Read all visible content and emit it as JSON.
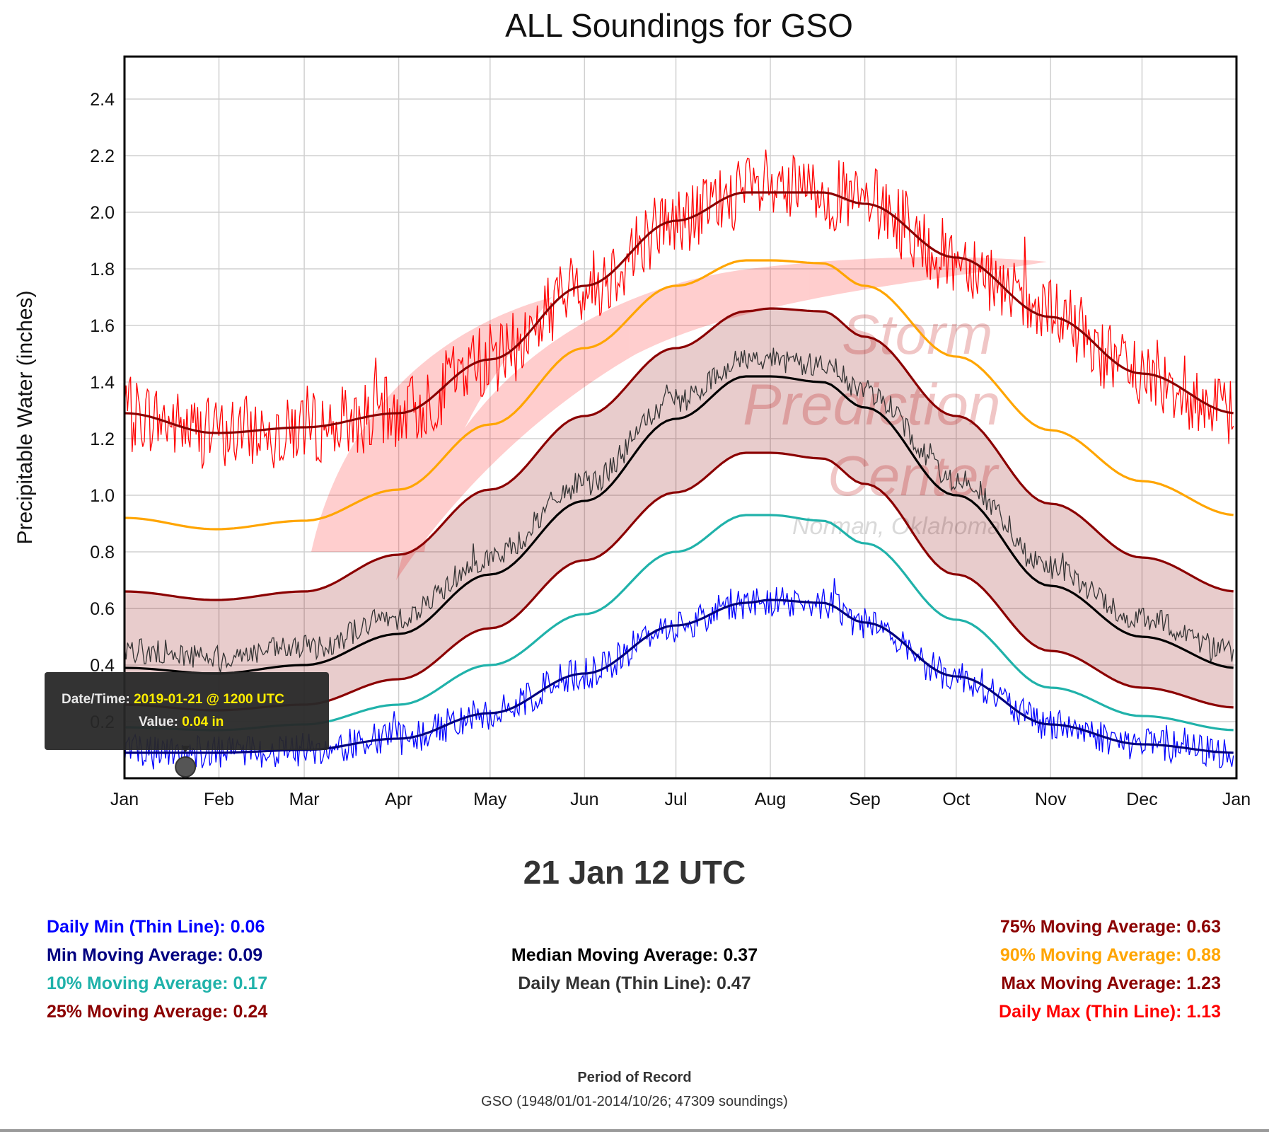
{
  "chart_data": {
    "type": "line",
    "title": "ALL Soundings for GSO",
    "ylabel": "Precipitable Water (inches)",
    "xlabel": "",
    "xlim_day_of_year": [
      1,
      366
    ],
    "ylim": [
      0.0,
      2.55
    ],
    "y_ticks": [
      0.2,
      0.4,
      0.6,
      0.8,
      1.0,
      1.2,
      1.4,
      1.6,
      1.8,
      2.0,
      2.2,
      2.4
    ],
    "x_tick_labels": [
      "Jan",
      "Feb",
      "Mar",
      "Apr",
      "May",
      "Jun",
      "Jul",
      "Aug",
      "Sep",
      "Oct",
      "Nov",
      "Dec",
      "Jan"
    ],
    "x_tick_days": [
      1,
      32,
      60,
      91,
      121,
      152,
      182,
      213,
      244,
      274,
      305,
      335,
      366
    ],
    "grid": true,
    "shaded_band": "25% to 75% moving average",
    "moving_average_days": [
      1,
      31,
      60,
      91,
      121,
      152,
      182,
      205,
      213,
      230,
      244,
      274,
      305,
      335,
      366
    ],
    "series": [
      {
        "name": "Max Moving Average",
        "color": "#8b0000",
        "kind": "smooth",
        "values": [
          1.29,
          1.22,
          1.24,
          1.29,
          1.48,
          1.74,
          1.97,
          2.07,
          2.07,
          2.07,
          2.03,
          1.84,
          1.63,
          1.43,
          1.29
        ]
      },
      {
        "name": "90% Moving Average",
        "color": "#ffa500",
        "kind": "smooth",
        "values": [
          0.92,
          0.88,
          0.91,
          1.02,
          1.25,
          1.52,
          1.74,
          1.83,
          1.83,
          1.82,
          1.74,
          1.49,
          1.23,
          1.05,
          0.93
        ]
      },
      {
        "name": "75% Moving Average",
        "color": "#8b0000",
        "kind": "smooth",
        "values": [
          0.66,
          0.63,
          0.66,
          0.79,
          1.02,
          1.28,
          1.52,
          1.65,
          1.66,
          1.65,
          1.56,
          1.28,
          0.97,
          0.78,
          0.66
        ]
      },
      {
        "name": "Median Moving Average",
        "color": "#000000",
        "kind": "smooth",
        "values": [
          0.39,
          0.37,
          0.4,
          0.51,
          0.72,
          0.98,
          1.27,
          1.42,
          1.42,
          1.4,
          1.31,
          1.0,
          0.68,
          0.5,
          0.39
        ]
      },
      {
        "name": "25% Moving Average",
        "color": "#8b0000",
        "kind": "smooth",
        "values": [
          0.26,
          0.24,
          0.26,
          0.35,
          0.53,
          0.77,
          1.01,
          1.15,
          1.15,
          1.13,
          1.04,
          0.72,
          0.45,
          0.32,
          0.25
        ]
      },
      {
        "name": "10% Moving Average",
        "color": "#20b2aa",
        "kind": "smooth",
        "values": [
          0.18,
          0.17,
          0.19,
          0.26,
          0.4,
          0.58,
          0.8,
          0.93,
          0.93,
          0.91,
          0.83,
          0.56,
          0.32,
          0.22,
          0.17
        ]
      },
      {
        "name": "Min Moving Average",
        "color": "#000080",
        "kind": "smooth",
        "values": [
          0.09,
          0.09,
          0.1,
          0.14,
          0.23,
          0.37,
          0.54,
          0.62,
          0.63,
          0.62,
          0.55,
          0.36,
          0.19,
          0.12,
          0.09
        ]
      },
      {
        "name": "Daily Max (Thin Line)",
        "color": "#ff0000",
        "kind": "daily",
        "based_on": "Max Moving Average",
        "noise": 0.13
      },
      {
        "name": "Daily Mean (Thin Line)",
        "color": "#333333",
        "kind": "daily",
        "based_on": "Median Moving Average",
        "offset": 0.06,
        "noise": 0.045
      },
      {
        "name": "Daily Min (Thin Line)",
        "color": "#0000ff",
        "kind": "daily",
        "based_on": "Min Moving Average",
        "noise": 0.06
      }
    ],
    "highlight": {
      "day": 21,
      "value": 0.04
    }
  },
  "watermark": {
    "line1": "Storm",
    "line2": "Prediction",
    "line3": "Center",
    "line4": "Norman, Oklahoma"
  },
  "tooltip": {
    "datetime_label": "Date/Time:",
    "datetime_value": "2019-01-21 @ 1200 UTC",
    "value_label": "Value:",
    "value_value": "0.04 in"
  },
  "selected_date": "21 Jan 12 UTC",
  "stats": {
    "left": [
      {
        "label": "Daily Min (Thin Line): 0.06",
        "color": "#0000ff"
      },
      {
        "label": "Min Moving Average: 0.09",
        "color": "#000080"
      },
      {
        "label": "10% Moving Average: 0.17",
        "color": "#20b2aa"
      },
      {
        "label": "25% Moving Average: 0.24",
        "color": "#8b0000"
      }
    ],
    "center": [
      {
        "label": "Median Moving Average: 0.37",
        "color": "#000000"
      },
      {
        "label": "Daily Mean (Thin Line): 0.47",
        "color": "#333333"
      }
    ],
    "right": [
      {
        "label": "75% Moving Average: 0.63",
        "color": "#8b0000"
      },
      {
        "label": "90% Moving Average: 0.88",
        "color": "#ffa500"
      },
      {
        "label": "Max Moving Average: 1.23",
        "color": "#8b0000"
      },
      {
        "label": "Daily Max (Thin Line): 1.13",
        "color": "#ff0000"
      }
    ]
  },
  "period": {
    "title": "Period of Record",
    "text": "GSO (1948/01/01-2014/10/26; 47309 soundings)"
  }
}
